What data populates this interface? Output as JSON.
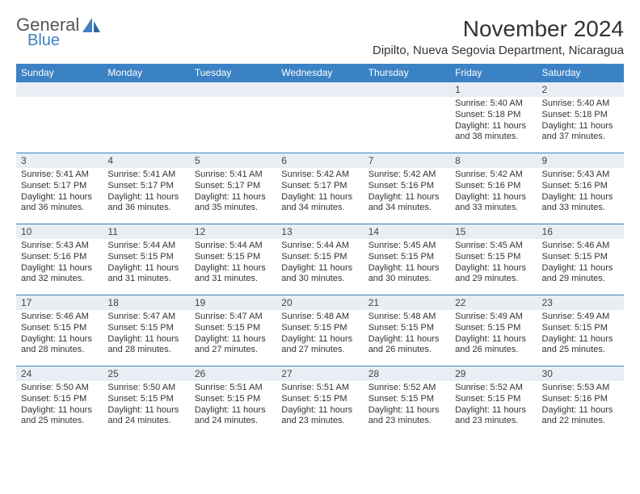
{
  "brand": {
    "word1": "General",
    "word2": "Blue",
    "logo_color": "#3b82c4",
    "text_gray": "#555555"
  },
  "title": "November 2024",
  "location": "Dipilto, Nueva Segovia Department, Nicaragua",
  "colors": {
    "header_bg": "#3b82c4",
    "header_text": "#ffffff",
    "daynum_bg": "#e8eef3",
    "border": "#3b82c4",
    "body_text": "#333333",
    "page_bg": "#ffffff"
  },
  "fonts": {
    "title_size": 28,
    "location_size": 15,
    "th_size": 12,
    "daynum_size": 12,
    "content_size": 11
  },
  "weekdays": [
    "Sunday",
    "Monday",
    "Tuesday",
    "Wednesday",
    "Thursday",
    "Friday",
    "Saturday"
  ],
  "weeks": [
    [
      null,
      null,
      null,
      null,
      null,
      {
        "n": "1",
        "sr": "Sunrise: 5:40 AM",
        "ss": "Sunset: 5:18 PM",
        "dl": "Daylight: 11 hours and 38 minutes."
      },
      {
        "n": "2",
        "sr": "Sunrise: 5:40 AM",
        "ss": "Sunset: 5:18 PM",
        "dl": "Daylight: 11 hours and 37 minutes."
      }
    ],
    [
      {
        "n": "3",
        "sr": "Sunrise: 5:41 AM",
        "ss": "Sunset: 5:17 PM",
        "dl": "Daylight: 11 hours and 36 minutes."
      },
      {
        "n": "4",
        "sr": "Sunrise: 5:41 AM",
        "ss": "Sunset: 5:17 PM",
        "dl": "Daylight: 11 hours and 36 minutes."
      },
      {
        "n": "5",
        "sr": "Sunrise: 5:41 AM",
        "ss": "Sunset: 5:17 PM",
        "dl": "Daylight: 11 hours and 35 minutes."
      },
      {
        "n": "6",
        "sr": "Sunrise: 5:42 AM",
        "ss": "Sunset: 5:17 PM",
        "dl": "Daylight: 11 hours and 34 minutes."
      },
      {
        "n": "7",
        "sr": "Sunrise: 5:42 AM",
        "ss": "Sunset: 5:16 PM",
        "dl": "Daylight: 11 hours and 34 minutes."
      },
      {
        "n": "8",
        "sr": "Sunrise: 5:42 AM",
        "ss": "Sunset: 5:16 PM",
        "dl": "Daylight: 11 hours and 33 minutes."
      },
      {
        "n": "9",
        "sr": "Sunrise: 5:43 AM",
        "ss": "Sunset: 5:16 PM",
        "dl": "Daylight: 11 hours and 33 minutes."
      }
    ],
    [
      {
        "n": "10",
        "sr": "Sunrise: 5:43 AM",
        "ss": "Sunset: 5:16 PM",
        "dl": "Daylight: 11 hours and 32 minutes."
      },
      {
        "n": "11",
        "sr": "Sunrise: 5:44 AM",
        "ss": "Sunset: 5:15 PM",
        "dl": "Daylight: 11 hours and 31 minutes."
      },
      {
        "n": "12",
        "sr": "Sunrise: 5:44 AM",
        "ss": "Sunset: 5:15 PM",
        "dl": "Daylight: 11 hours and 31 minutes."
      },
      {
        "n": "13",
        "sr": "Sunrise: 5:44 AM",
        "ss": "Sunset: 5:15 PM",
        "dl": "Daylight: 11 hours and 30 minutes."
      },
      {
        "n": "14",
        "sr": "Sunrise: 5:45 AM",
        "ss": "Sunset: 5:15 PM",
        "dl": "Daylight: 11 hours and 30 minutes."
      },
      {
        "n": "15",
        "sr": "Sunrise: 5:45 AM",
        "ss": "Sunset: 5:15 PM",
        "dl": "Daylight: 11 hours and 29 minutes."
      },
      {
        "n": "16",
        "sr": "Sunrise: 5:46 AM",
        "ss": "Sunset: 5:15 PM",
        "dl": "Daylight: 11 hours and 29 minutes."
      }
    ],
    [
      {
        "n": "17",
        "sr": "Sunrise: 5:46 AM",
        "ss": "Sunset: 5:15 PM",
        "dl": "Daylight: 11 hours and 28 minutes."
      },
      {
        "n": "18",
        "sr": "Sunrise: 5:47 AM",
        "ss": "Sunset: 5:15 PM",
        "dl": "Daylight: 11 hours and 28 minutes."
      },
      {
        "n": "19",
        "sr": "Sunrise: 5:47 AM",
        "ss": "Sunset: 5:15 PM",
        "dl": "Daylight: 11 hours and 27 minutes."
      },
      {
        "n": "20",
        "sr": "Sunrise: 5:48 AM",
        "ss": "Sunset: 5:15 PM",
        "dl": "Daylight: 11 hours and 27 minutes."
      },
      {
        "n": "21",
        "sr": "Sunrise: 5:48 AM",
        "ss": "Sunset: 5:15 PM",
        "dl": "Daylight: 11 hours and 26 minutes."
      },
      {
        "n": "22",
        "sr": "Sunrise: 5:49 AM",
        "ss": "Sunset: 5:15 PM",
        "dl": "Daylight: 11 hours and 26 minutes."
      },
      {
        "n": "23",
        "sr": "Sunrise: 5:49 AM",
        "ss": "Sunset: 5:15 PM",
        "dl": "Daylight: 11 hours and 25 minutes."
      }
    ],
    [
      {
        "n": "24",
        "sr": "Sunrise: 5:50 AM",
        "ss": "Sunset: 5:15 PM",
        "dl": "Daylight: 11 hours and 25 minutes."
      },
      {
        "n": "25",
        "sr": "Sunrise: 5:50 AM",
        "ss": "Sunset: 5:15 PM",
        "dl": "Daylight: 11 hours and 24 minutes."
      },
      {
        "n": "26",
        "sr": "Sunrise: 5:51 AM",
        "ss": "Sunset: 5:15 PM",
        "dl": "Daylight: 11 hours and 24 minutes."
      },
      {
        "n": "27",
        "sr": "Sunrise: 5:51 AM",
        "ss": "Sunset: 5:15 PM",
        "dl": "Daylight: 11 hours and 23 minutes."
      },
      {
        "n": "28",
        "sr": "Sunrise: 5:52 AM",
        "ss": "Sunset: 5:15 PM",
        "dl": "Daylight: 11 hours and 23 minutes."
      },
      {
        "n": "29",
        "sr": "Sunrise: 5:52 AM",
        "ss": "Sunset: 5:15 PM",
        "dl": "Daylight: 11 hours and 23 minutes."
      },
      {
        "n": "30",
        "sr": "Sunrise: 5:53 AM",
        "ss": "Sunset: 5:16 PM",
        "dl": "Daylight: 11 hours and 22 minutes."
      }
    ]
  ]
}
